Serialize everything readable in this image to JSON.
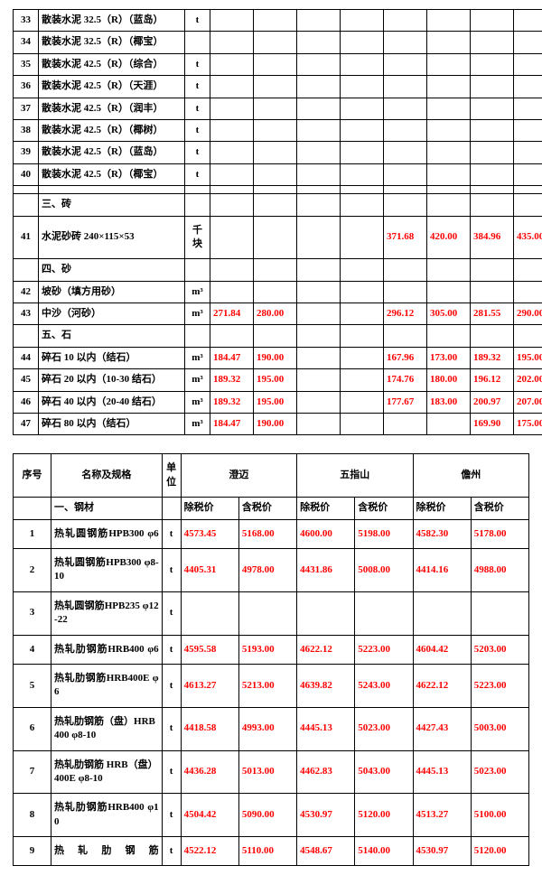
{
  "table1": {
    "rows": [
      {
        "n": "33",
        "name": "散装水泥 32.5（R）（蓝岛）",
        "unit": "t",
        "v": [
          "",
          "",
          "",
          "",
          "",
          "",
          "",
          ""
        ]
      },
      {
        "n": "34",
        "name": "散装水泥 32.5（R）（椰宝）",
        "unit": "",
        "v": [
          "",
          "",
          "",
          "",
          "",
          "",
          "",
          ""
        ]
      },
      {
        "n": "35",
        "name": "散装水泥 42.5（R）（综合）",
        "unit": "t",
        "v": [
          "",
          "",
          "",
          "",
          "",
          "",
          "",
          ""
        ]
      },
      {
        "n": "36",
        "name": "散装水泥 42.5（R）（天涯）",
        "unit": "t",
        "v": [
          "",
          "",
          "",
          "",
          "",
          "",
          "",
          ""
        ]
      },
      {
        "n": "37",
        "name": "散装水泥 42.5（R）（润丰）",
        "unit": "t",
        "v": [
          "",
          "",
          "",
          "",
          "",
          "",
          "",
          ""
        ]
      },
      {
        "n": "38",
        "name": "散装水泥 42.5（R）（椰树）",
        "unit": "t",
        "v": [
          "",
          "",
          "",
          "",
          "",
          "",
          "",
          ""
        ]
      },
      {
        "n": "39",
        "name": "散装水泥 42.5（R）（蓝岛）",
        "unit": "t",
        "v": [
          "",
          "",
          "",
          "",
          "",
          "",
          "",
          ""
        ]
      },
      {
        "n": "40",
        "name": "散装水泥 42.5（R）（椰宝）",
        "unit": "t",
        "v": [
          "",
          "",
          "",
          "",
          "",
          "",
          "",
          ""
        ]
      },
      {
        "n": "",
        "name": "",
        "unit": "",
        "v": [
          "",
          "",
          "",
          "",
          "",
          "",
          "",
          ""
        ]
      },
      {
        "n": "",
        "name": "三、砖",
        "unit": "",
        "v": [
          "",
          "",
          "",
          "",
          "",
          "",
          "",
          ""
        ],
        "section": true
      },
      {
        "n": "41",
        "name": "水泥砂砖 240×115×53",
        "unit": "千块",
        "v": [
          "",
          "",
          "",
          "",
          "371.68",
          "420.00",
          "384.96",
          "435.00"
        ],
        "red": true,
        "tall": true
      },
      {
        "n": "",
        "name": "四、砂",
        "unit": "",
        "v": [
          "",
          "",
          "",
          "",
          "",
          "",
          "",
          ""
        ],
        "section": true
      },
      {
        "n": "42",
        "name": "坡砂（填方用砂）",
        "unit": "m³",
        "v": [
          "",
          "",
          "",
          "",
          "",
          "",
          "",
          ""
        ]
      },
      {
        "n": "43",
        "name": "中沙（河砂）",
        "unit": "m³",
        "v": [
          "271.84",
          "280.00",
          "",
          "",
          "296.12",
          "305.00",
          "281.55",
          "290.00"
        ],
        "red": true
      },
      {
        "n": "",
        "name": "五、石",
        "unit": "",
        "v": [
          "",
          "",
          "",
          "",
          "",
          "",
          "",
          ""
        ],
        "section": true
      },
      {
        "n": "44",
        "name": "碎石 10 以内（结石）",
        "unit": "m³",
        "v": [
          "184.47",
          "190.00",
          "",
          "",
          "167.96",
          "173.00",
          "189.32",
          "195.00"
        ],
        "red": true
      },
      {
        "n": "45",
        "name": "碎石 20 以内（10-30 结石）",
        "unit": "m³",
        "v": [
          "189.32",
          "195.00",
          "",
          "",
          "174.76",
          "180.00",
          "196.12",
          "202.00"
        ],
        "red": true
      },
      {
        "n": "46",
        "name": "碎石 40 以内（20-40 结石）",
        "unit": "m³",
        "v": [
          "189.32",
          "195.00",
          "",
          "",
          "177.67",
          "183.00",
          "200.97",
          "207.00"
        ],
        "red": true
      },
      {
        "n": "47",
        "name": "碎石 80 以内（结石）",
        "unit": "m³",
        "v": [
          "184.47",
          "190.00",
          "",
          "",
          "",
          "",
          "169.90",
          "175.00"
        ],
        "red": true
      }
    ]
  },
  "table2": {
    "header": {
      "seq": "序号",
      "name": "名称及规格",
      "unit": "单位",
      "regions": [
        "澄迈",
        "五指山",
        "儋州"
      ],
      "sub": [
        "除税价",
        "含税价"
      ]
    },
    "section1": "一、钢材",
    "rows": [
      {
        "n": "1",
        "name": "热轧圆钢筋HPB300 φ6",
        "justify": true,
        "unit": "t",
        "v": [
          "4573.45",
          "5168.00",
          "4600.00",
          "5198.00",
          "4582.30",
          "5178.00"
        ]
      },
      {
        "n": "2",
        "name": "热轧圆钢筋HPB300 φ8-10",
        "justify": true,
        "unit": "t",
        "v": [
          "4405.31",
          "4978.00",
          "4431.86",
          "5008.00",
          "4414.16",
          "4988.00"
        ]
      },
      {
        "n": "3",
        "name": "热轧圆钢筋HPB235 φ12-22",
        "justify": true,
        "unit": "t",
        "v": [
          "",
          "",
          "",
          "",
          "",
          ""
        ]
      },
      {
        "n": "4",
        "name": "热轧肋钢筋HRB400 φ6",
        "justify": true,
        "unit": "t",
        "v": [
          "4595.58",
          "5193.00",
          "4622.12",
          "5223.00",
          "4604.42",
          "5203.00"
        ]
      },
      {
        "n": "5",
        "name": "热轧肋钢筋HRB400E φ6",
        "justify": true,
        "unit": "t",
        "v": [
          "4613.27",
          "5213.00",
          "4639.82",
          "5243.00",
          "4622.12",
          "5223.00"
        ]
      },
      {
        "n": "6",
        "name": "热轧肋钢筋（盘）HRB400 φ8-10",
        "justify": false,
        "unit": "t",
        "v": [
          "4418.58",
          "4993.00",
          "4445.13",
          "5023.00",
          "4427.43",
          "5003.00"
        ]
      },
      {
        "n": "7",
        "name": "热轧肋钢筋 HRB（盘）400E φ8-10",
        "justify": false,
        "unit": "t",
        "v": [
          "4436.28",
          "5013.00",
          "4462.83",
          "5043.00",
          "4445.13",
          "5023.00"
        ]
      },
      {
        "n": "8",
        "name": "热轧肋钢筋HRB400 φ10",
        "justify": true,
        "unit": "t",
        "v": [
          "4504.42",
          "5090.00",
          "4530.97",
          "5120.00",
          "4513.27",
          "5100.00"
        ]
      },
      {
        "n": "9",
        "name": "热轧肋钢筋",
        "justify": true,
        "unit": "t",
        "v": [
          "4522.12",
          "5110.00",
          "4548.67",
          "5140.00",
          "4530.97",
          "5120.00"
        ]
      }
    ]
  }
}
